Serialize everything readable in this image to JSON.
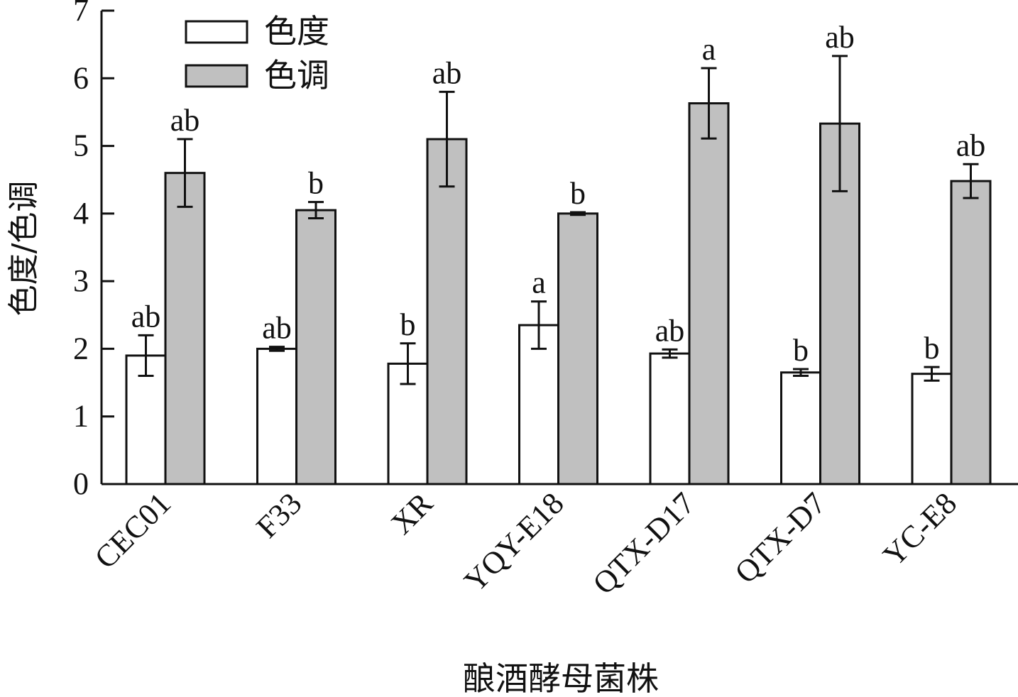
{
  "chart_data": {
    "type": "bar",
    "title": "",
    "xlabel": "酿酒酵母菌株",
    "ylabel": "色度/色调",
    "ylim": [
      0,
      7
    ],
    "yticks": [
      0,
      1,
      2,
      3,
      4,
      5,
      6,
      7
    ],
    "categories": [
      "CEC01",
      "F33",
      "XR",
      "YQY-E18",
      "QTX-D17",
      "QTX-D7",
      "YC-E8"
    ],
    "legend_position": "top-left",
    "grid": false,
    "series": [
      {
        "name": "色度",
        "color": "#ffffff",
        "values": [
          1.9,
          2.0,
          1.78,
          2.35,
          1.93,
          1.65,
          1.63
        ],
        "errors": [
          0.3,
          0.03,
          0.3,
          0.35,
          0.06,
          0.05,
          0.1
        ],
        "labels": [
          "ab",
          "ab",
          "b",
          "a",
          "ab",
          "b",
          "b"
        ]
      },
      {
        "name": "色调",
        "color": "#c0c0c0",
        "values": [
          4.6,
          4.05,
          5.1,
          4.0,
          5.63,
          5.33,
          4.48
        ],
        "errors": [
          0.5,
          0.12,
          0.7,
          0.02,
          0.52,
          1.0,
          0.25
        ],
        "labels": [
          "ab",
          "b",
          "ab",
          "b",
          "a",
          "ab",
          "ab"
        ]
      }
    ]
  }
}
